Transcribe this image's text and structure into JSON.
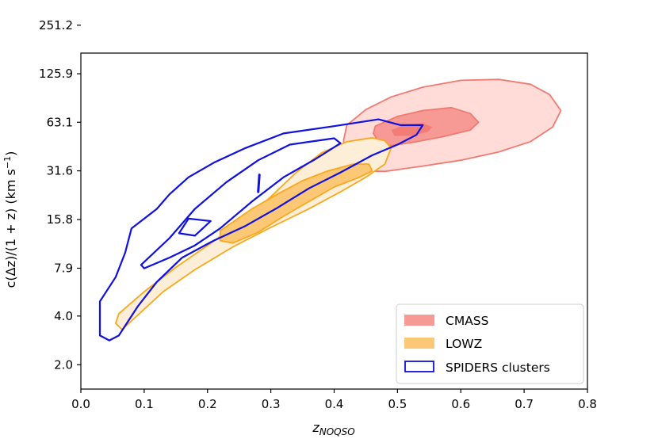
{
  "chart_data": {
    "type": "contour",
    "title": "",
    "xlabel": "z",
    "xlabel_subscript": "NOQSO",
    "ylabel": "c(Δz)/(1 + z) (km s",
    "ylabel_superscript": "−1",
    "ylabel_close": ")",
    "xlim": [
      0.0,
      0.8
    ],
    "ylim_log2": [
      0.5,
      7.4
    ],
    "x_ticks": [
      {
        "value": 0.0,
        "label": "0.0"
      },
      {
        "value": 0.1,
        "label": "0.1"
      },
      {
        "value": 0.2,
        "label": "0.2"
      },
      {
        "value": 0.3,
        "label": "0.3"
      },
      {
        "value": 0.4,
        "label": "0.4"
      },
      {
        "value": 0.5,
        "label": "0.5"
      },
      {
        "value": 0.6,
        "label": "0.6"
      },
      {
        "value": 0.7,
        "label": "0.7"
      },
      {
        "value": 0.8,
        "label": "0.8"
      }
    ],
    "y_ticks": [
      {
        "value": 2.0,
        "label": "2.0"
      },
      {
        "value": 4.0,
        "label": "4.0"
      },
      {
        "value": 7.9,
        "label": "7.9"
      },
      {
        "value": 15.8,
        "label": "15.8"
      },
      {
        "value": 31.6,
        "label": "31.6"
      },
      {
        "value": 63.1,
        "label": "63.1"
      },
      {
        "value": 125.9,
        "label": "125.9"
      },
      {
        "value": 251.2,
        "label": "251.2"
      }
    ],
    "legend_position": "lower right",
    "series": [
      {
        "name": "CMASS",
        "style": "filled",
        "colors": {
          "outer": "#ffdcd8",
          "inner": "#f79a95",
          "core": "#f27c76",
          "edge": "#f07a72"
        },
        "contours": [
          {
            "level": "outer",
            "points": [
              [
                0.42,
                5.92
              ],
              [
                0.45,
                6.24
              ],
              [
                0.49,
                6.5
              ],
              [
                0.54,
                6.7
              ],
              [
                0.6,
                6.84
              ],
              [
                0.66,
                6.86
              ],
              [
                0.71,
                6.76
              ],
              [
                0.74,
                6.55
              ],
              [
                0.758,
                6.22
              ],
              [
                0.745,
                5.88
              ],
              [
                0.71,
                5.58
              ],
              [
                0.66,
                5.37
              ],
              [
                0.6,
                5.2
              ],
              [
                0.54,
                5.08
              ],
              [
                0.48,
                4.97
              ],
              [
                0.44,
                4.98
              ],
              [
                0.42,
                5.1
              ],
              [
                0.415,
                5.35
              ],
              [
                0.415,
                5.62
              ]
            ]
          },
          {
            "level": "inner",
            "points": [
              [
                0.465,
                5.9
              ],
              [
                0.5,
                6.1
              ],
              [
                0.54,
                6.22
              ],
              [
                0.585,
                6.28
              ],
              [
                0.615,
                6.16
              ],
              [
                0.628,
                5.98
              ],
              [
                0.615,
                5.82
              ],
              [
                0.57,
                5.68
              ],
              [
                0.53,
                5.58
              ],
              [
                0.49,
                5.5
              ],
              [
                0.47,
                5.58
              ],
              [
                0.462,
                5.75
              ]
            ]
          },
          {
            "level": "core",
            "points": [
              [
                0.49,
                5.82
              ],
              [
                0.51,
                5.92
              ],
              [
                0.54,
                5.96
              ],
              [
                0.555,
                5.88
              ],
              [
                0.548,
                5.78
              ],
              [
                0.52,
                5.7
              ],
              [
                0.495,
                5.7
              ]
            ]
          }
        ]
      },
      {
        "name": "LOWZ",
        "style": "filled",
        "colors": {
          "outer": "#fdeed8",
          "inner": "#fdc876",
          "edge": "#f9a81c"
        },
        "contours": [
          {
            "level": "outer",
            "points": [
              [
                0.06,
                2.05
              ],
              [
                0.1,
                2.5
              ],
              [
                0.15,
                3.0
              ],
              [
                0.2,
                3.45
              ],
              [
                0.26,
                4.0
              ],
              [
                0.3,
                4.45
              ],
              [
                0.34,
                4.95
              ],
              [
                0.38,
                5.35
              ],
              [
                0.42,
                5.58
              ],
              [
                0.46,
                5.66
              ],
              [
                0.48,
                5.6
              ],
              [
                0.49,
                5.45
              ],
              [
                0.48,
                5.12
              ],
              [
                0.45,
                4.85
              ],
              [
                0.41,
                4.55
              ],
              [
                0.36,
                4.2
              ],
              [
                0.3,
                3.82
              ],
              [
                0.24,
                3.42
              ],
              [
                0.18,
                2.95
              ],
              [
                0.13,
                2.5
              ],
              [
                0.09,
                2.02
              ],
              [
                0.065,
                1.72
              ],
              [
                0.055,
                1.85
              ]
            ]
          },
          {
            "level": "inner",
            "points": [
              [
                0.22,
                3.75
              ],
              [
                0.27,
                4.2
              ],
              [
                0.31,
                4.5
              ],
              [
                0.35,
                4.78
              ],
              [
                0.39,
                4.98
              ],
              [
                0.43,
                5.12
              ],
              [
                0.455,
                5.12
              ],
              [
                0.46,
                4.98
              ],
              [
                0.44,
                4.85
              ],
              [
                0.4,
                4.65
              ],
              [
                0.36,
                4.35
              ],
              [
                0.32,
                4.05
              ],
              [
                0.28,
                3.72
              ],
              [
                0.24,
                3.5
              ],
              [
                0.22,
                3.55
              ]
            ]
          },
          {
            "level": "core",
            "points": [
              [
                0.33,
                4.5
              ],
              [
                0.36,
                4.7
              ],
              [
                0.385,
                4.75
              ],
              [
                0.39,
                4.65
              ],
              [
                0.37,
                4.5
              ],
              [
                0.345,
                4.38
              ],
              [
                0.33,
                4.4
              ]
            ]
          }
        ]
      },
      {
        "name": "SPIDERS clusters",
        "style": "outline",
        "colors": {
          "edge": "#1010e0"
        },
        "contours": [
          {
            "level": "outer",
            "points": [
              [
                0.03,
                1.7
              ],
              [
                0.03,
                2.3
              ],
              [
                0.055,
                2.8
              ],
              [
                0.07,
                3.3
              ],
              [
                0.08,
                3.8
              ],
              [
                0.12,
                4.2
              ],
              [
                0.14,
                4.5
              ],
              [
                0.17,
                4.85
              ],
              [
                0.21,
                5.15
              ],
              [
                0.26,
                5.45
              ],
              [
                0.32,
                5.75
              ],
              [
                0.4,
                5.9
              ],
              [
                0.47,
                6.04
              ],
              [
                0.505,
                5.92
              ],
              [
                0.54,
                5.92
              ],
              [
                0.53,
                5.72
              ],
              [
                0.5,
                5.52
              ],
              [
                0.46,
                5.3
              ],
              [
                0.41,
                4.95
              ],
              [
                0.36,
                4.62
              ],
              [
                0.31,
                4.22
              ],
              [
                0.26,
                3.85
              ],
              [
                0.21,
                3.55
              ],
              [
                0.16,
                3.2
              ],
              [
                0.12,
                2.7
              ],
              [
                0.09,
                2.2
              ],
              [
                0.06,
                1.6
              ],
              [
                0.045,
                1.5
              ],
              [
                0.03,
                1.6
              ]
            ]
          },
          {
            "level": "inner",
            "points": [
              [
                0.095,
                3.05
              ],
              [
                0.14,
                3.6
              ],
              [
                0.18,
                4.2
              ],
              [
                0.23,
                4.75
              ],
              [
                0.28,
                5.2
              ],
              [
                0.33,
                5.52
              ],
              [
                0.4,
                5.65
              ],
              [
                0.41,
                5.55
              ],
              [
                0.37,
                5.22
              ],
              [
                0.32,
                4.85
              ],
              [
                0.27,
                4.35
              ],
              [
                0.22,
                3.8
              ],
              [
                0.18,
                3.45
              ],
              [
                0.14,
                3.2
              ],
              [
                0.1,
                2.98
              ]
            ]
          },
          {
            "level": "small",
            "points": [
              [
                0.155,
                3.7
              ],
              [
                0.17,
                4.0
              ],
              [
                0.205,
                3.95
              ],
              [
                0.18,
                3.65
              ]
            ]
          }
        ]
      }
    ],
    "annotation_segment": {
      "x": [
        0.28,
        0.282
      ],
      "y_log2": [
        4.55,
        4.9
      ]
    }
  }
}
